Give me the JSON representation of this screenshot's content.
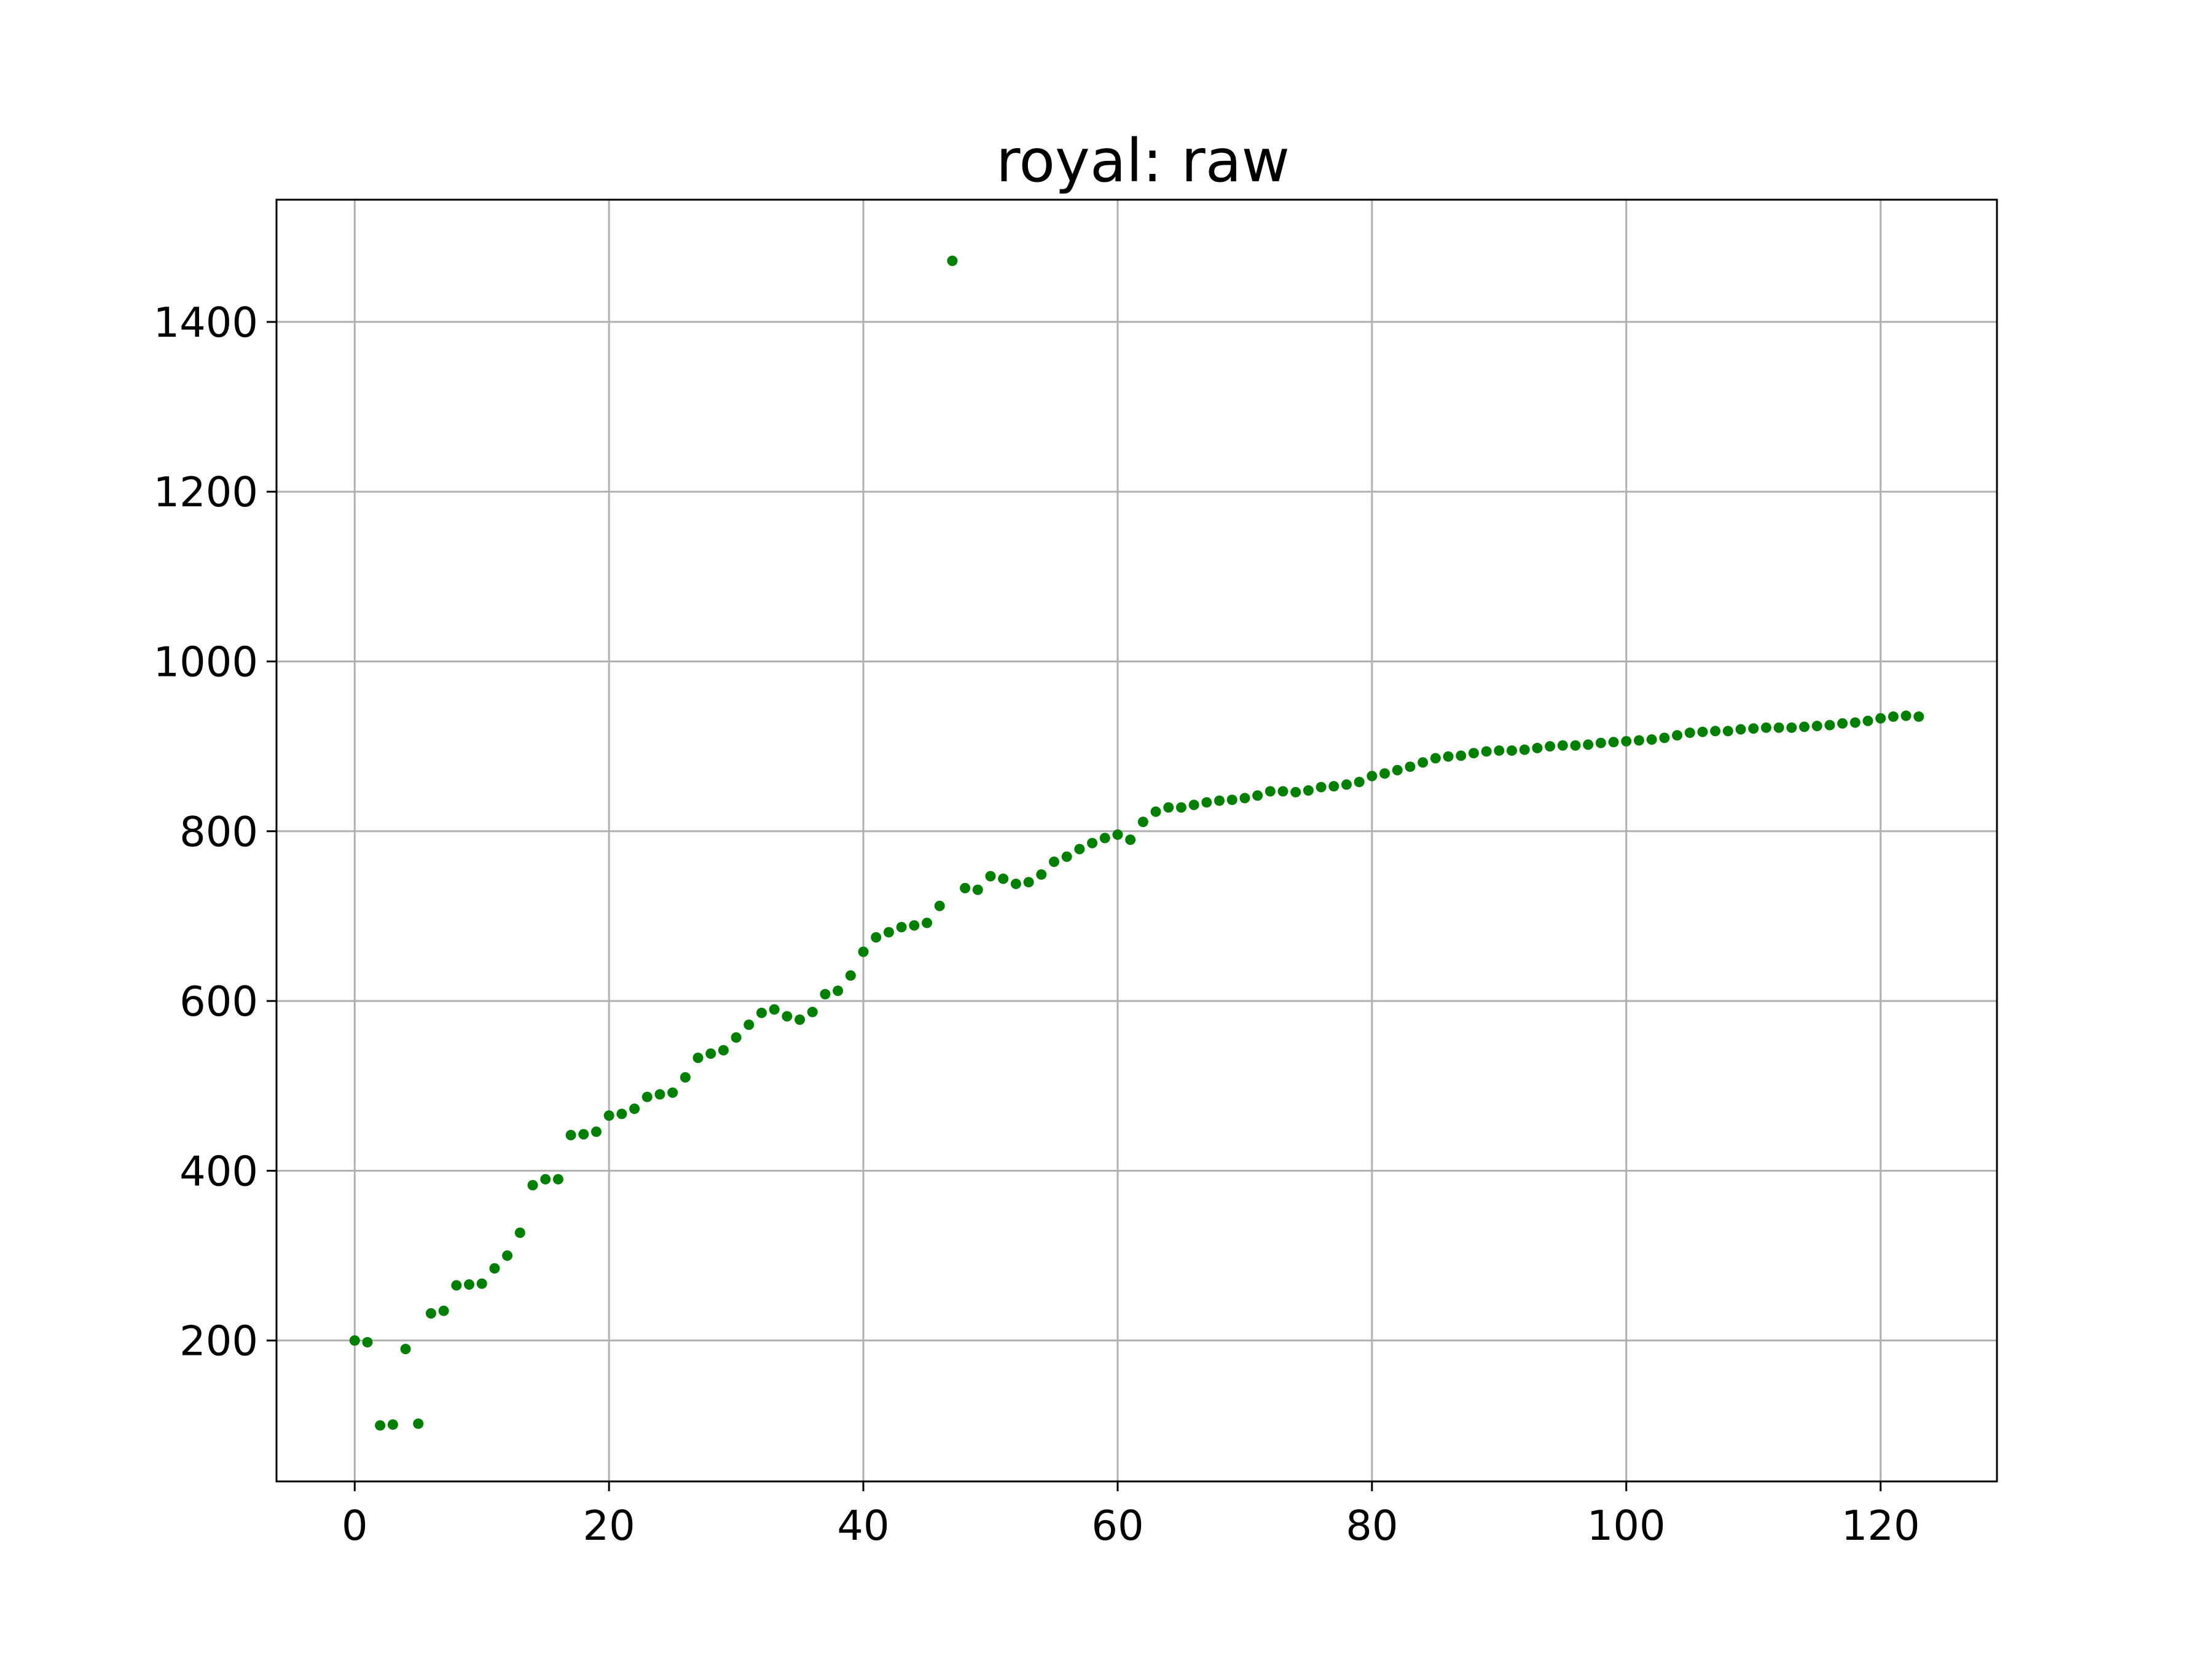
{
  "chart_data": {
    "type": "scatter",
    "title": "royal: raw",
    "xlabel": "",
    "ylabel": "",
    "xlim": [
      -6.15,
      129.15
    ],
    "ylim": [
      34,
      1544
    ],
    "x_ticks": [
      0,
      20,
      40,
      60,
      80,
      100,
      120
    ],
    "y_ticks": [
      200,
      400,
      600,
      800,
      1000,
      1200,
      1400
    ],
    "grid": true,
    "marker_color": "#008000",
    "series": [
      {
        "x": [
          0,
          1,
          2,
          3,
          4,
          5,
          6,
          7,
          8,
          9,
          10,
          11,
          12,
          13,
          14,
          15,
          16,
          17,
          18,
          19,
          20,
          21,
          22,
          23,
          24,
          25,
          26,
          27,
          28,
          29,
          30,
          31,
          32,
          33,
          34,
          35,
          36,
          37,
          38,
          39,
          40,
          41,
          42,
          43,
          44,
          45,
          46,
          47,
          48,
          49,
          50,
          51,
          52,
          53,
          54,
          55,
          56,
          57,
          58,
          59,
          60,
          61,
          62,
          63,
          64,
          65,
          66,
          67,
          68,
          69,
          70,
          71,
          72,
          73,
          74,
          75,
          76,
          77,
          78,
          79,
          80,
          81,
          82,
          83,
          84,
          85,
          86,
          87,
          88,
          89,
          90,
          91,
          92,
          93,
          94,
          95,
          96,
          97,
          98,
          99,
          100,
          101,
          102,
          103,
          104,
          105,
          106,
          107,
          108,
          109,
          110,
          111,
          112,
          113,
          114,
          115,
          116,
          117,
          118,
          119,
          120,
          121,
          122,
          123
        ],
        "y": [
          200,
          198,
          100,
          101,
          190,
          102,
          232,
          235,
          265,
          266,
          267,
          285,
          300,
          327,
          383,
          390,
          390,
          442,
          443,
          446,
          465,
          467,
          473,
          487,
          490,
          492,
          510,
          533,
          538,
          542,
          557,
          572,
          586,
          590,
          582,
          578,
          587,
          608,
          612,
          630,
          658,
          675,
          681,
          687,
          689,
          692,
          712,
          1472,
          733,
          731,
          747,
          744,
          738,
          740,
          749,
          764,
          770,
          779,
          786,
          792,
          796,
          790,
          811,
          823,
          828,
          828,
          831,
          834,
          836,
          837,
          839,
          842,
          847,
          847,
          846,
          848,
          852,
          853,
          855,
          858,
          865,
          868,
          872,
          876,
          881,
          886,
          888,
          889,
          892,
          894,
          895,
          895,
          896,
          898,
          900,
          901,
          901,
          902,
          904,
          905,
          906,
          907,
          908,
          910,
          913,
          916,
          917,
          918,
          918,
          920,
          921,
          922,
          922,
          922,
          923,
          924,
          925,
          927,
          928,
          930,
          933,
          935,
          936,
          935
        ]
      }
    ]
  }
}
